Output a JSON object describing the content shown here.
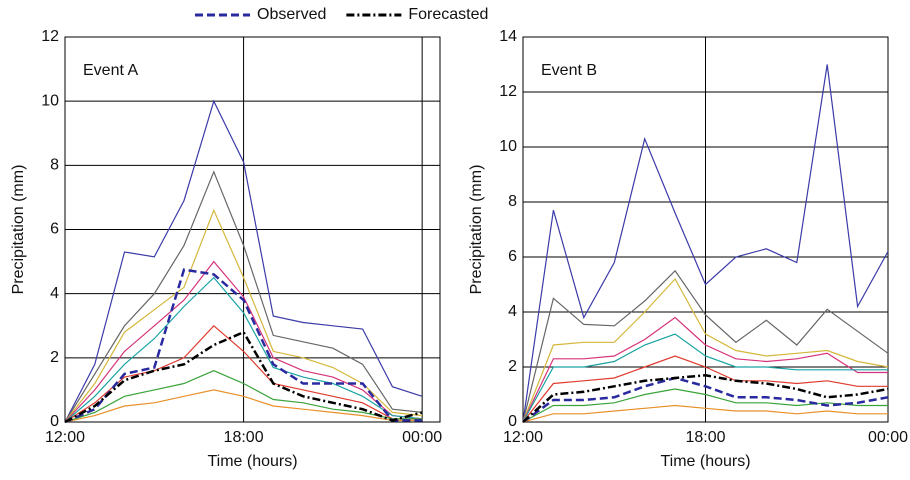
{
  "chart_data": [
    {
      "type": "line",
      "annotation": "Event A",
      "xlabel": "Time (hours)",
      "ylabel": "Precipitation (mm)",
      "x": [
        0,
        1,
        2,
        3,
        4,
        5,
        6,
        7,
        8,
        9,
        10,
        11,
        12
      ],
      "xlim": [
        0,
        12.6
      ],
      "xticks": [
        {
          "value": 0,
          "label": "12:00"
        },
        {
          "value": 6,
          "label": "18:00"
        },
        {
          "value": 12,
          "label": "00:00"
        }
      ],
      "ylim": [
        0,
        12
      ],
      "yticks": [
        0,
        2,
        4,
        6,
        8,
        10,
        12
      ],
      "grid": true,
      "series": [
        {
          "color": "#3b3ba8",
          "values": [
            0,
            1.8,
            5.3,
            5.15,
            6.9,
            10,
            8.1,
            3.3,
            3.1,
            3.0,
            2.9,
            1.1,
            0.8
          ]
        },
        {
          "color": "#666666",
          "values": [
            0,
            1.5,
            3.0,
            4.0,
            5.5,
            7.8,
            5.5,
            2.7,
            2.5,
            2.3,
            1.8,
            0.4,
            0.3
          ]
        },
        {
          "color": "#d4b73a",
          "values": [
            0,
            1.2,
            2.8,
            3.5,
            4.2,
            6.6,
            4.5,
            2.2,
            2.0,
            1.7,
            1.2,
            0.3,
            0.2
          ]
        },
        {
          "color": "#d6337a",
          "values": [
            0,
            1.0,
            2.2,
            3.0,
            3.8,
            5.0,
            3.9,
            2.0,
            1.6,
            1.4,
            1.0,
            0.2,
            0.1
          ]
        },
        {
          "color": "#1aa3a3",
          "values": [
            0,
            0.8,
            1.8,
            2.6,
            3.6,
            4.5,
            3.4,
            1.7,
            1.4,
            1.2,
            0.8,
            0.2,
            0.1
          ]
        },
        {
          "color": "#e03b2e",
          "values": [
            0,
            0.6,
            1.4,
            1.6,
            2.0,
            3.0,
            2.2,
            1.2,
            1.0,
            0.8,
            0.6,
            0.1,
            0.1
          ]
        },
        {
          "color": "#3aa33a",
          "values": [
            0,
            0.3,
            0.8,
            1.0,
            1.2,
            1.6,
            1.2,
            0.7,
            0.6,
            0.4,
            0.3,
            0.1,
            0.1
          ]
        },
        {
          "color": "#e8902a",
          "values": [
            0,
            0.2,
            0.5,
            0.6,
            0.8,
            1.0,
            0.8,
            0.5,
            0.4,
            0.3,
            0.2,
            0.05,
            0.05
          ]
        },
        {
          "name": "Observed",
          "color": "#2a2aa0",
          "style": "dashed",
          "values": [
            0,
            0.4,
            1.5,
            1.7,
            4.75,
            4.6,
            3.8,
            1.8,
            1.2,
            1.2,
            1.2,
            0.05,
            0.05
          ]
        },
        {
          "name": "Forecasted",
          "color": "#000000",
          "style": "dashdot",
          "values": [
            0,
            0.5,
            1.3,
            1.6,
            1.8,
            2.4,
            2.8,
            1.2,
            0.8,
            0.6,
            0.4,
            0.05,
            0.3
          ]
        }
      ]
    },
    {
      "type": "line",
      "annotation": "Event B",
      "xlabel": "Time (hours)",
      "ylabel": "Precipitation (mm)",
      "x": [
        0,
        1,
        2,
        3,
        4,
        5,
        6,
        7,
        8,
        9,
        10,
        11,
        12
      ],
      "xlim": [
        0,
        12
      ],
      "xticks": [
        {
          "value": 0,
          "label": "12:00"
        },
        {
          "value": 6,
          "label": "18:00"
        },
        {
          "value": 12,
          "label": "00:00"
        }
      ],
      "ylim": [
        0,
        14
      ],
      "yticks": [
        0,
        2,
        4,
        6,
        8,
        10,
        12,
        14
      ],
      "grid": true,
      "series": [
        {
          "color": "#3b3ba8",
          "values": [
            0,
            7.7,
            3.8,
            5.8,
            10.3,
            7.6,
            5.0,
            6.0,
            6.3,
            5.8,
            13.0,
            4.2,
            6.2
          ]
        },
        {
          "color": "#666666",
          "values": [
            0,
            4.5,
            3.55,
            3.5,
            4.4,
            5.5,
            3.9,
            2.9,
            3.7,
            2.8,
            4.1,
            3.3,
            2.5
          ]
        },
        {
          "color": "#d4b73a",
          "values": [
            0,
            2.8,
            2.9,
            2.9,
            4.0,
            5.2,
            3.2,
            2.6,
            2.4,
            2.5,
            2.6,
            2.2,
            2.0
          ]
        },
        {
          "color": "#d6337a",
          "values": [
            0,
            2.3,
            2.3,
            2.4,
            3.0,
            3.8,
            2.8,
            2.3,
            2.2,
            2.3,
            2.5,
            1.8,
            1.8
          ]
        },
        {
          "color": "#1aa3a3",
          "values": [
            0,
            2.0,
            2.0,
            2.2,
            2.8,
            3.2,
            2.4,
            2.0,
            2.0,
            1.9,
            1.9,
            1.9,
            1.9
          ]
        },
        {
          "color": "#e03b2e",
          "values": [
            0,
            1.4,
            1.5,
            1.6,
            2.0,
            2.4,
            2.0,
            1.5,
            1.5,
            1.4,
            1.5,
            1.3,
            1.3
          ]
        },
        {
          "color": "#3aa33a",
          "values": [
            0,
            0.6,
            0.6,
            0.7,
            1.0,
            1.2,
            1.0,
            0.7,
            0.7,
            0.6,
            0.7,
            0.6,
            0.6
          ]
        },
        {
          "color": "#e8902a",
          "values": [
            0,
            0.3,
            0.3,
            0.4,
            0.5,
            0.6,
            0.5,
            0.4,
            0.4,
            0.3,
            0.4,
            0.3,
            0.3
          ]
        },
        {
          "color": "#2a2aa0",
          "style": "dashed",
          "values": [
            0,
            0.8,
            0.8,
            0.9,
            1.3,
            1.6,
            1.3,
            0.9,
            0.9,
            0.8,
            0.6,
            0.7,
            0.9
          ]
        },
        {
          "color": "#000000",
          "style": "dashdot",
          "values": [
            0,
            1.0,
            1.1,
            1.3,
            1.5,
            1.6,
            1.7,
            1.5,
            1.4,
            1.2,
            0.9,
            1.0,
            1.2
          ]
        }
      ]
    }
  ]
}
